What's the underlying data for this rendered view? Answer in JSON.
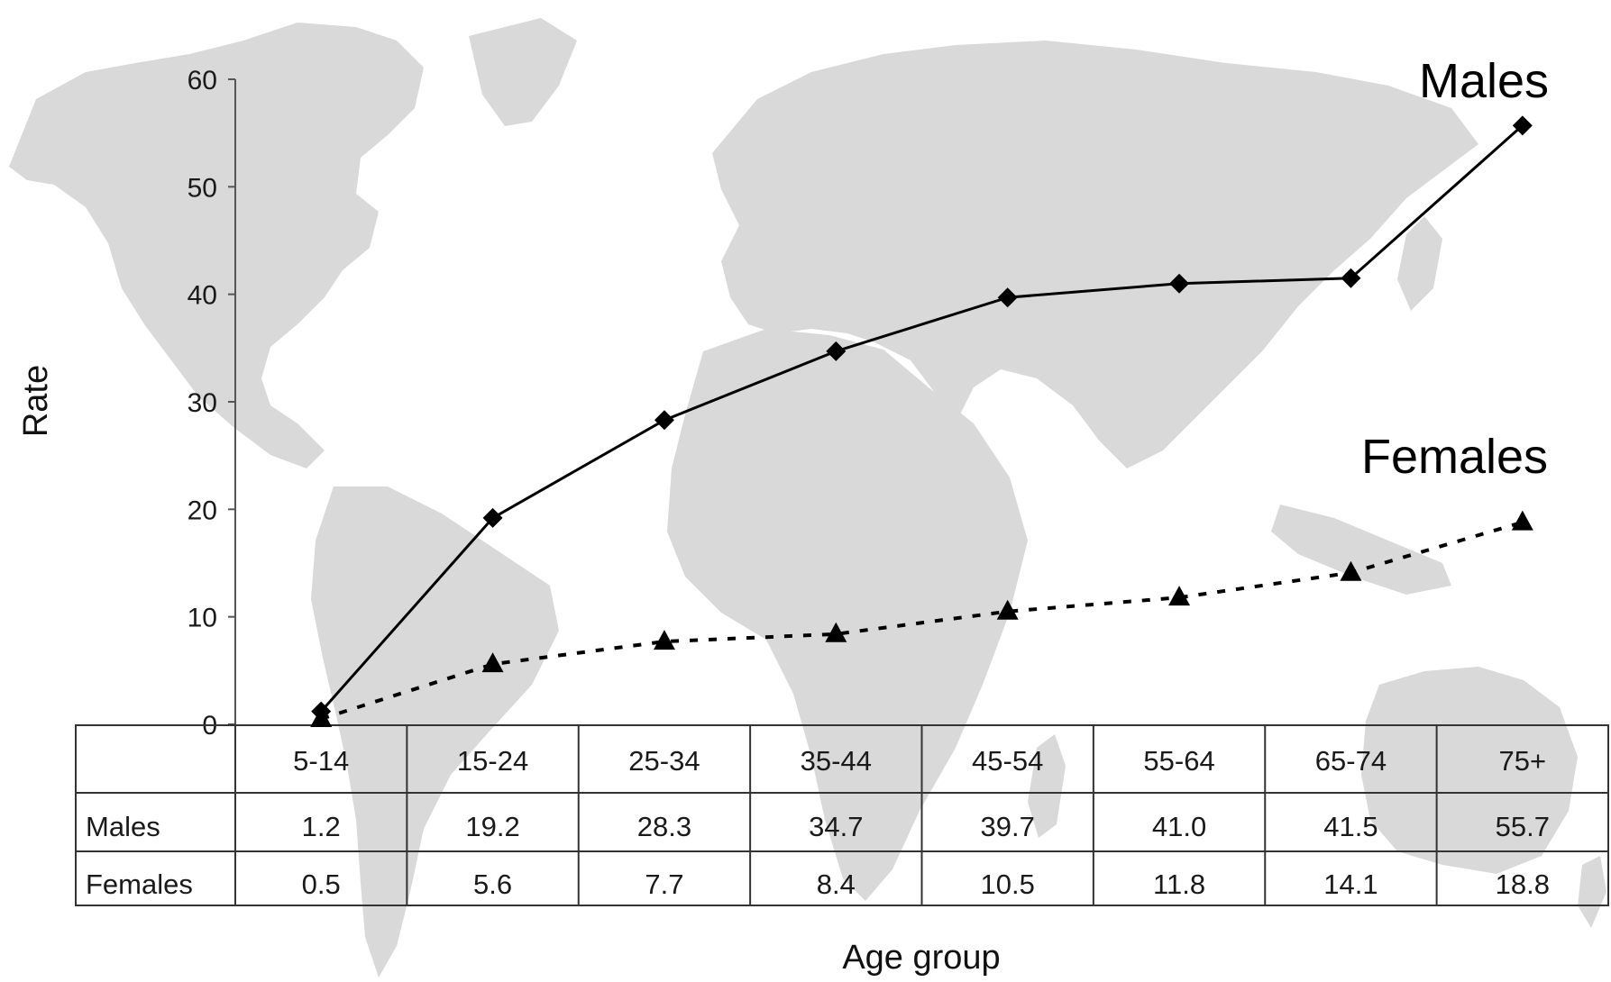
{
  "chart_data": {
    "type": "line",
    "xlabel": "Age group",
    "ylabel": "Rate",
    "ylim": [
      0,
      60
    ],
    "yticks": [
      0,
      10,
      20,
      30,
      40,
      50,
      60
    ],
    "grid": false,
    "legend": "inline labels at top-right",
    "categories": [
      "5-14",
      "15-24",
      "25-34",
      "35-44",
      "45-54",
      "55-64",
      "65-74",
      "75+"
    ],
    "series": [
      {
        "name": "Males",
        "values": [
          1.2,
          19.2,
          28.3,
          34.7,
          39.7,
          41.0,
          41.5,
          55.7
        ],
        "marker": "diamond",
        "line": "solid"
      },
      {
        "name": "Females",
        "values": [
          0.5,
          5.6,
          7.7,
          8.4,
          10.5,
          11.8,
          14.1,
          18.8
        ],
        "marker": "triangle",
        "line": "dotted"
      }
    ],
    "table_values": {
      "Males": [
        "1.2",
        "19.2",
        "28.3",
        "34.7",
        "39.7",
        "41.0",
        "41.5",
        "55.7"
      ],
      "Females": [
        "0.5",
        "5.6",
        "7.7",
        "8.4",
        "10.5",
        "11.8",
        "14.1",
        "18.8"
      ]
    },
    "background": "world map silhouette",
    "colors": {
      "map": "#d9d9d9",
      "line": "#000000",
      "table_border": "#333333"
    }
  }
}
